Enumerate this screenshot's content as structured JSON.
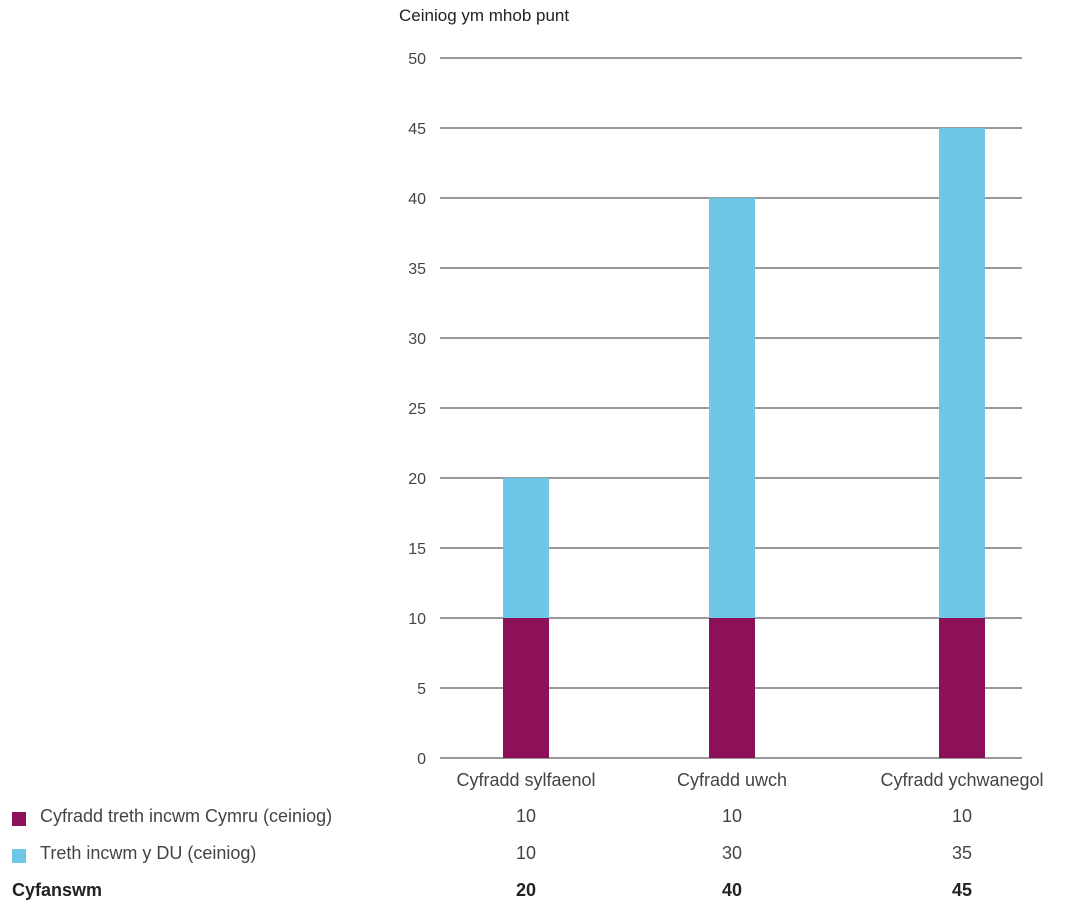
{
  "chart_data": {
    "type": "bar",
    "stacked": true,
    "ylabel": "Ceiniog ym mhob punt",
    "xlabel": "",
    "ylim": [
      0,
      50
    ],
    "yticks": [
      0,
      5,
      10,
      15,
      20,
      25,
      30,
      35,
      40,
      45,
      50
    ],
    "grid": true,
    "categories": [
      "Cyfradd sylfaenol",
      "Cyfradd uwch",
      "Cyfradd ychwanegol"
    ],
    "series": [
      {
        "name": "Cyfradd treth incwm Cymru (ceiniog)",
        "color": "#8c1159",
        "values": [
          10,
          10,
          10
        ]
      },
      {
        "name": "Treth incwm y DU (ceiniog)",
        "color": "#6ec7e6",
        "values": [
          10,
          30,
          35
        ]
      }
    ],
    "totals": {
      "label": "Cyfanswm",
      "values": [
        20,
        40,
        45
      ]
    }
  }
}
